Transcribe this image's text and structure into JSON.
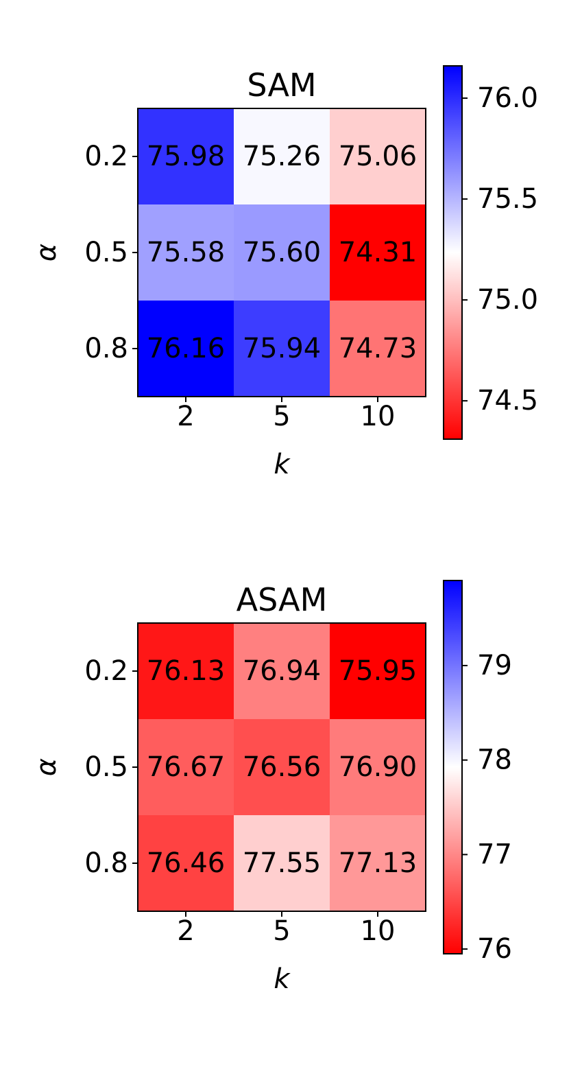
{
  "chart_data": [
    {
      "type": "heatmap",
      "title": "SAM",
      "xlabel": "k",
      "ylabel": "α",
      "x_categories": [
        "2",
        "5",
        "10"
      ],
      "y_categories": [
        "0.2",
        "0.5",
        "0.8"
      ],
      "values": [
        [
          75.98,
          75.26,
          75.06
        ],
        [
          75.58,
          75.6,
          74.31
        ],
        [
          76.16,
          75.94,
          74.73
        ]
      ],
      "cell_labels": [
        [
          "75.98",
          "75.26",
          "75.06"
        ],
        [
          "75.58",
          "75.60",
          "74.31"
        ],
        [
          "76.16",
          "75.94",
          "74.73"
        ]
      ],
      "colormap": "bwr_r",
      "color_low": "#ff0000",
      "color_mid": "#ffffff",
      "color_high": "#0000ff",
      "vmin": 74.31,
      "vmax": 76.16,
      "colorbar_ticks": [
        74.5,
        75.0,
        75.5,
        76.0
      ],
      "colorbar_tick_labels": [
        "74.5",
        "75.0",
        "75.5",
        "76.0"
      ]
    },
    {
      "type": "heatmap",
      "title": "ASAM",
      "xlabel": "k",
      "ylabel": "α",
      "x_categories": [
        "2",
        "5",
        "10"
      ],
      "y_categories": [
        "0.2",
        "0.5",
        "0.8"
      ],
      "values": [
        [
          76.13,
          76.94,
          75.95
        ],
        [
          76.67,
          76.56,
          76.9
        ],
        [
          76.46,
          77.55,
          77.13
        ]
      ],
      "cell_labels": [
        [
          "76.13",
          "76.94",
          "75.95"
        ],
        [
          "76.67",
          "76.56",
          "76.90"
        ],
        [
          "76.46",
          "77.55",
          "77.13"
        ]
      ],
      "colormap": "bwr_r",
      "color_low": "#ff0000",
      "color_mid": "#ffffff",
      "color_high": "#0000ff",
      "vmin": 75.95,
      "vmax": 79.9,
      "colorbar_ticks": [
        76,
        77,
        78,
        79
      ],
      "colorbar_tick_labels": [
        "76",
        "77",
        "78",
        "79"
      ]
    }
  ]
}
